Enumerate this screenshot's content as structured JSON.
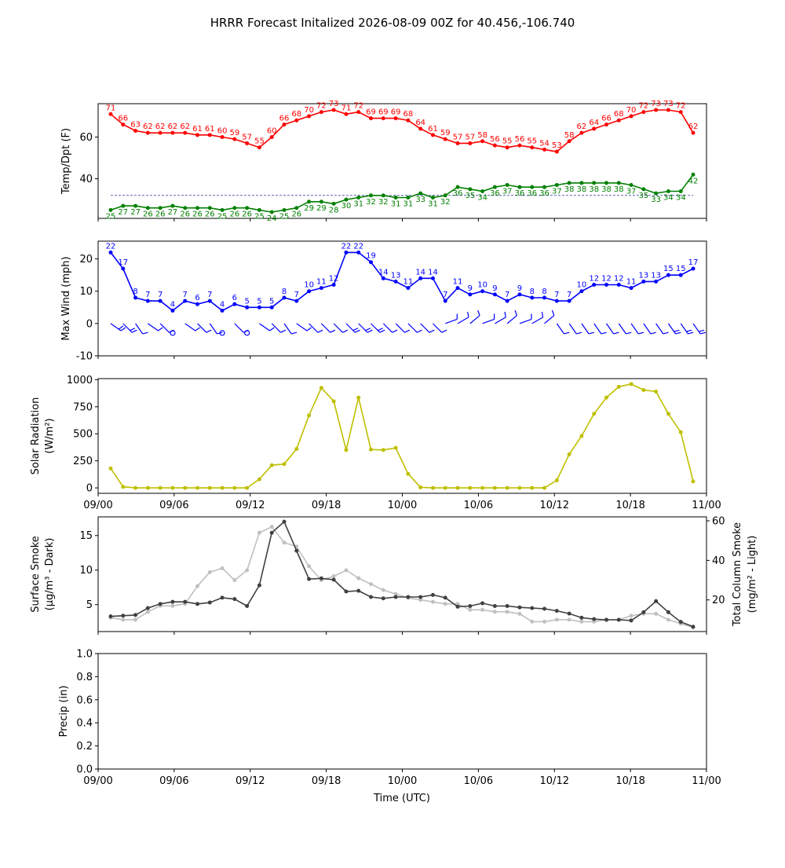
{
  "title": "HRRR Forecast Initalized 2026-08-09 00Z for 40.456,-106.740",
  "x_ticks": [
    "09/00",
    "09/06",
    "09/12",
    "09/18",
    "10/00",
    "10/06",
    "10/12",
    "10/18",
    "11/00"
  ],
  "x_label": "Time (UTC)",
  "colors": {
    "temp": "#ff0000",
    "dewpoint": "#008000",
    "wind": "#0000ff",
    "solar": "#bfbf00",
    "smoke_surface": "#404040",
    "smoke_column": "#c0c0c0"
  },
  "chart_data": [
    {
      "id": "temp",
      "type": "line",
      "ylabel": "Temp/Dpt (F)",
      "yticks": [
        40,
        60
      ],
      "ylim": [
        21,
        76
      ],
      "hline": 32,
      "hline_style": "dashed",
      "series": [
        {
          "key": "temperature",
          "color_key": "temp",
          "labels": true,
          "values": [
            71,
            66,
            63,
            62,
            62,
            62,
            62,
            61,
            61,
            60,
            59,
            57,
            55,
            60,
            66,
            68,
            70,
            72,
            73,
            71,
            72,
            69,
            69,
            69,
            68,
            64,
            61,
            59,
            57,
            57,
            58,
            56,
            55,
            56,
            55,
            54,
            53,
            58,
            62,
            64,
            66,
            68,
            70,
            72,
            73,
            73,
            72,
            62
          ]
        },
        {
          "key": "dewpoint",
          "color_key": "dewpoint",
          "labels": true,
          "values": [
            25,
            27,
            27,
            26,
            26,
            27,
            26,
            26,
            26,
            25,
            26,
            26,
            25,
            24,
            25,
            26,
            29,
            29,
            28,
            30,
            31,
            32,
            32,
            31,
            31,
            33,
            31,
            32,
            36,
            35,
            34,
            36,
            37,
            36,
            36,
            36,
            37,
            38,
            38,
            38,
            38,
            38,
            37,
            35,
            33,
            34,
            34,
            42
          ]
        }
      ]
    },
    {
      "id": "wind",
      "type": "line",
      "ylabel": "Max Wind (mph)",
      "yticks": [
        -10,
        0,
        10,
        20
      ],
      "ylim": [
        -10,
        25.5
      ],
      "barbs": true,
      "series": [
        {
          "key": "max_wind",
          "color_key": "wind",
          "labels": true,
          "values": [
            22,
            17,
            8,
            7,
            7,
            4,
            7,
            6,
            7,
            4,
            6,
            5,
            5,
            5,
            8,
            7,
            10,
            11,
            12,
            22,
            22,
            19,
            14,
            13,
            11,
            14,
            14,
            7,
            11,
            9,
            10,
            9,
            7,
            9,
            8,
            8,
            7,
            7,
            10,
            12,
            12,
            12,
            11,
            13,
            13,
            15,
            15,
            17
          ]
        }
      ]
    },
    {
      "id": "solar",
      "type": "line",
      "ylabel": "Solar Radiation",
      "ylabel_units": "(W/m²)",
      "yticks": [
        0,
        250,
        500,
        750,
        1000
      ],
      "ylim": [
        -50,
        1010
      ],
      "series": [
        {
          "key": "solar_radiation",
          "color_key": "solar",
          "labels": false,
          "values": [
            180,
            10,
            0,
            0,
            0,
            0,
            0,
            0,
            0,
            0,
            0,
            0,
            80,
            210,
            220,
            360,
            670,
            925,
            800,
            350,
            835,
            355,
            350,
            370,
            130,
            5,
            0,
            0,
            0,
            0,
            0,
            0,
            0,
            0,
            0,
            0,
            70,
            310,
            480,
            685,
            835,
            935,
            960,
            905,
            890,
            685,
            515,
            60
          ]
        }
      ]
    },
    {
      "id": "smoke",
      "type": "line",
      "ylabel": "Surface Smoke",
      "ylabel_units": "(μg/m³ - Dark)",
      "yticks": [
        5,
        10,
        15
      ],
      "ylim": [
        1.1,
        17.7
      ],
      "ylabel_right": "Total Column Smoke",
      "ylabel_right_units": "(mg/m² - Light)",
      "yticks_right": [
        20,
        40,
        60
      ],
      "ylim_right": [
        4.0,
        62.0
      ],
      "series": [
        {
          "key": "surface_smoke",
          "color_key": "smoke_surface",
          "axis": "left",
          "labels": false,
          "values": [
            3.3,
            3.4,
            3.5,
            4.5,
            5.1,
            5.4,
            5.4,
            5.1,
            5.3,
            6.0,
            5.8,
            4.8,
            7.8,
            15.4,
            17.0,
            12.8,
            8.7,
            8.8,
            8.6,
            6.9,
            7.0,
            6.1,
            5.9,
            6.1,
            6.1,
            6.1,
            6.4,
            6.0,
            4.7,
            4.8,
            5.2,
            4.8,
            4.8,
            4.6,
            4.5,
            4.4,
            4.1,
            3.7,
            3.1,
            2.9,
            2.8,
            2.8,
            2.7,
            3.9,
            5.5,
            3.9,
            2.5,
            1.8
          ]
        },
        {
          "key": "column_smoke",
          "color_key": "smoke_column",
          "axis": "right",
          "labels": false,
          "values": [
            11,
            10,
            10,
            14,
            17,
            17,
            18,
            27,
            34,
            36,
            30,
            35,
            54,
            57,
            49,
            47,
            37,
            30,
            32,
            35,
            31,
            28,
            25,
            23,
            21,
            20,
            19,
            18,
            18,
            15,
            15,
            14,
            14,
            13,
            9,
            9,
            10,
            10,
            9,
            9,
            10,
            10,
            12,
            13,
            13,
            10,
            8,
            6
          ]
        }
      ]
    },
    {
      "id": "precip",
      "type": "line",
      "ylabel": "Precip (in)",
      "yticks": [
        "0.0",
        "0.2",
        "0.4",
        "0.6",
        "0.8",
        "1.0"
      ],
      "ylim": [
        0,
        1
      ],
      "series": []
    }
  ]
}
